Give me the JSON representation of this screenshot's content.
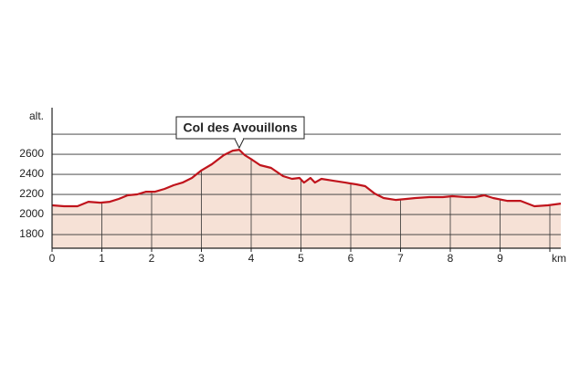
{
  "chart_data": {
    "type": "area",
    "y_label": "alt.",
    "annotation": "Col des Avouillons",
    "x": [
      0,
      0.24,
      0.51,
      0.73,
      0.97,
      1.16,
      1.34,
      1.52,
      1.71,
      1.89,
      2.07,
      2.26,
      2.44,
      2.62,
      2.81,
      2.99,
      3.21,
      3.45,
      3.63,
      3.76,
      3.87,
      4.02,
      4.18,
      4.4,
      4.64,
      4.82,
      4.97,
      5.06,
      5.19,
      5.28,
      5.41,
      5.65,
      5.89,
      6.11,
      6.29,
      6.48,
      6.66,
      6.9,
      7.12,
      7.3,
      7.58,
      7.85,
      8.04,
      8.31,
      8.5,
      8.68,
      8.86,
      9.14,
      9.41,
      9.69,
      9.96,
      10.22
    ],
    "values": [
      2091,
      2082,
      2082,
      2127,
      2118,
      2127,
      2155,
      2191,
      2200,
      2227,
      2227,
      2255,
      2291,
      2318,
      2364,
      2436,
      2500,
      2591,
      2636,
      2645,
      2591,
      2545,
      2491,
      2464,
      2382,
      2355,
      2364,
      2318,
      2364,
      2318,
      2355,
      2336,
      2318,
      2300,
      2282,
      2209,
      2164,
      2145,
      2155,
      2164,
      2173,
      2173,
      2182,
      2173,
      2173,
      2191,
      2164,
      2136,
      2136,
      2082,
      2091,
      2109
    ],
    "color": "#c0141c",
    "fill": "#f6e1d6",
    "xlim": [
      0,
      10.22
    ],
    "ylim": [
      1664,
      3064
    ],
    "xticks": [
      0,
      1,
      2,
      3,
      4,
      5,
      6,
      7,
      8,
      9,
      {
        "value": 10,
        "label": "km"
      }
    ],
    "yticks": [
      1800,
      2000,
      2200,
      2400,
      2600,
      {
        "value": 2800,
        "label": null
      }
    ],
    "grid": true
  }
}
